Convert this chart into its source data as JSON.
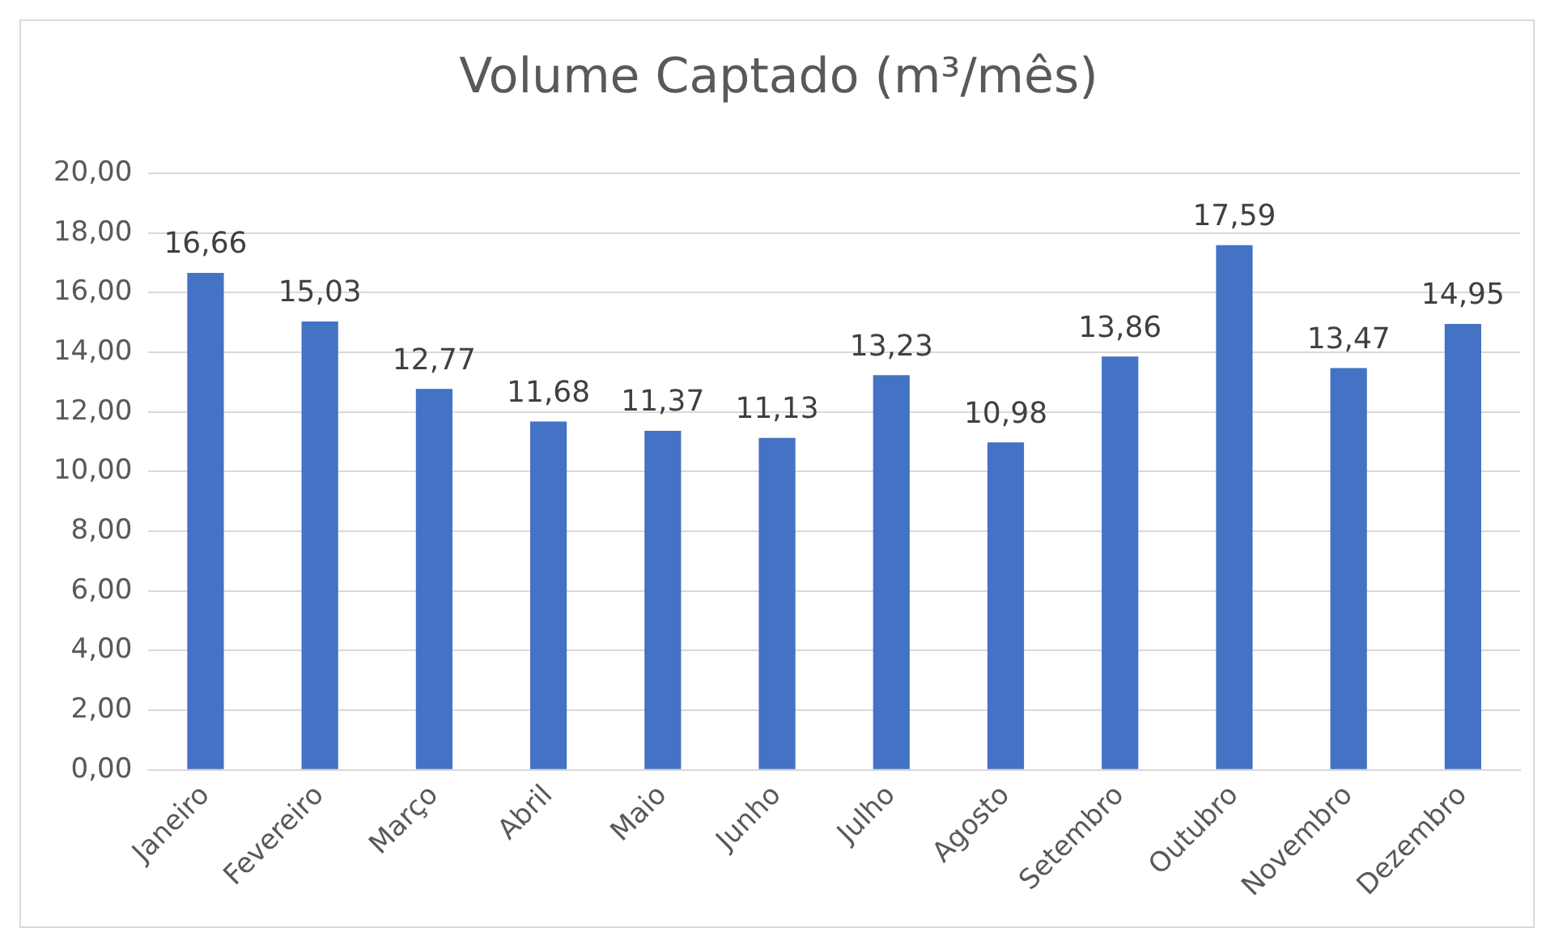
{
  "chart_data": {
    "type": "bar",
    "title": "Volume Captado (m³/mês)",
    "categories": [
      "Janeiro",
      "Fevereiro",
      "Março",
      "Abril",
      "Maio",
      "Junho",
      "Julho",
      "Agosto",
      "Setembro",
      "Outubro",
      "Novembro",
      "Dezembro"
    ],
    "values": [
      16.66,
      15.03,
      12.77,
      11.68,
      11.37,
      11.13,
      13.23,
      10.98,
      13.86,
      17.59,
      13.47,
      14.95
    ],
    "value_labels": [
      "16,66",
      "15,03",
      "12,77",
      "11,68",
      "11,37",
      "11,13",
      "13,23",
      "10,98",
      "13,86",
      "17,59",
      "13,47",
      "14,95"
    ],
    "color": "#4472c4",
    "ylim": [
      0,
      20
    ],
    "yticks": [
      {
        "value": 0,
        "label": "0,00"
      },
      {
        "value": 2,
        "label": "2,00"
      },
      {
        "value": 4,
        "label": "4,00"
      },
      {
        "value": 6,
        "label": "6,00"
      },
      {
        "value": 8,
        "label": "8,00"
      },
      {
        "value": 10,
        "label": "10,00"
      },
      {
        "value": 12,
        "label": "12,00"
      },
      {
        "value": 14,
        "label": "14,00"
      },
      {
        "value": 16,
        "label": "16,00"
      },
      {
        "value": 18,
        "label": "18,00"
      },
      {
        "value": 20,
        "label": "20,00"
      }
    ],
    "grid": "y"
  }
}
